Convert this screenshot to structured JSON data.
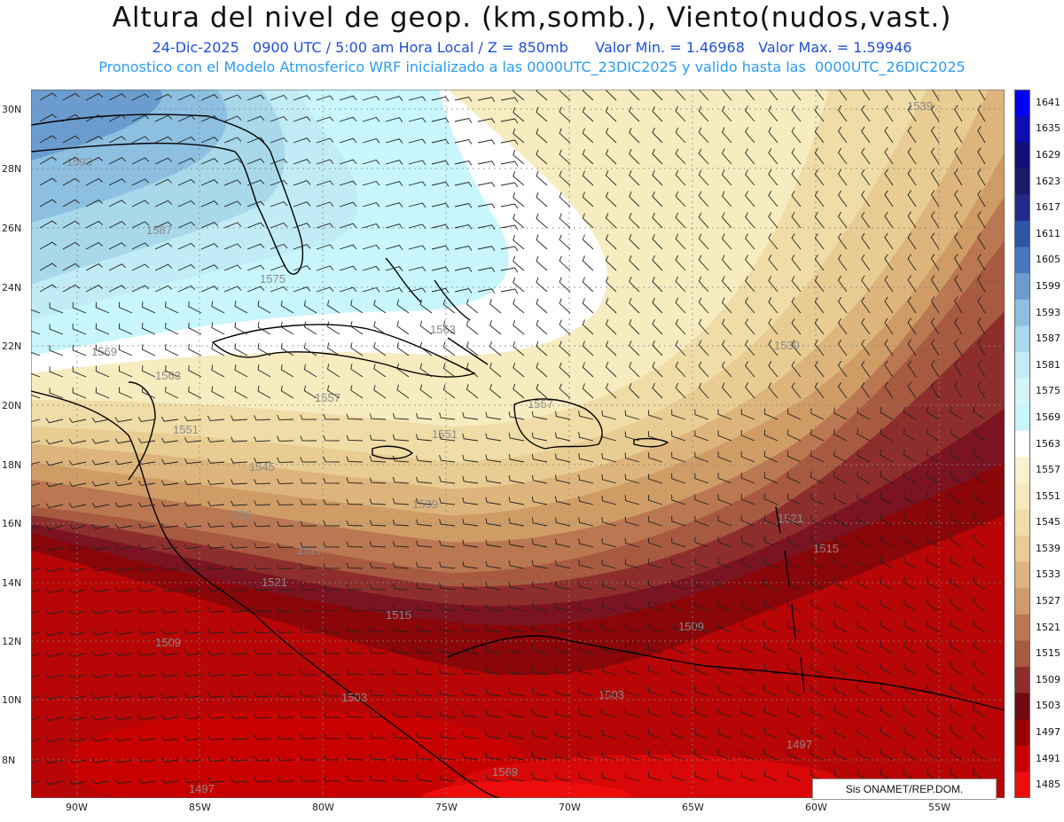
{
  "header": {
    "title": "Altura del nivel de geop. (km,somb.), Viento(nudos,vast.)",
    "line1": "24-Dic-2025   0900 UTC / 5:00 am Hora Local / Z = 850mb      Valor Min. = 1.46968   Valor Max. = 1.59946",
    "line2": "Pronostico con el Modelo Atmosferico WRF inicializado a las 0000UTC_23DIC2025 y valido hasta las  0000UTC_26DIC2025"
  },
  "lat_labels": [
    "30N",
    "28N",
    "26N",
    "24N",
    "22N",
    "20N",
    "18N",
    "16N",
    "14N",
    "12N",
    "10N",
    "8N"
  ],
  "lon_labels": [
    "90W",
    "85W",
    "80W",
    "75W",
    "70W",
    "65W",
    "60W",
    "55W"
  ],
  "colorbar": {
    "labels": [
      "1641",
      "1635",
      "1629",
      "1623",
      "1617",
      "1611",
      "1605",
      "1599",
      "1593",
      "1587",
      "1581",
      "1575",
      "1569",
      "1563",
      "1557",
      "1551",
      "1545",
      "1539",
      "1533",
      "1527",
      "1521",
      "1515",
      "1509",
      "1503",
      "1497",
      "1491",
      "1485"
    ],
    "colors": [
      "#0000f5",
      "#0d0db0",
      "#14107a",
      "#1c1a6b",
      "#232a8c",
      "#2e55a6",
      "#4677bf",
      "#6b9ccf",
      "#8cbfe0",
      "#a8d8ea",
      "#c2ecf5",
      "#d4f6fb",
      "#c8f6fc",
      "#ffffff",
      "#f7f1cf",
      "#f5e9bd",
      "#efdca6",
      "#e8cc92",
      "#ddb57c",
      "#cf9c66",
      "#bb7751",
      "#a85a40",
      "#8e2e2c",
      "#6e0a12",
      "#9a0000",
      "#c80000",
      "#ee0d0d"
    ]
  },
  "contour_labels": [
    "1539",
    "1593",
    "1587",
    "1575",
    "1569",
    "1563",
    "1557",
    "1551",
    "1545",
    "1539",
    "1533",
    "1527",
    "1521",
    "1515",
    "1509",
    "1503",
    "1497",
    "1563",
    "1557",
    "1551",
    "1539",
    "1521",
    "1509",
    "1503",
    "1497",
    "1515",
    "1569"
  ],
  "credit": "Sis        ONAMET/REP.DOM."
}
